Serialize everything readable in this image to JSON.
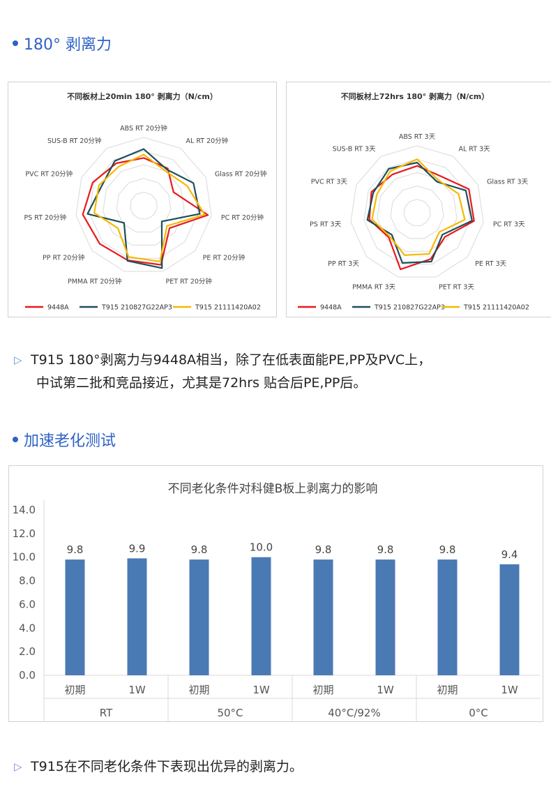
{
  "section1": {
    "title": "180° 剥离力"
  },
  "section2": {
    "title": "加速老化测试"
  },
  "notes": {
    "note1_line1": "T915 180°剥离力与9448A相当，除了在低表面能PE,PP及PVC上，",
    "note1_line2": "中试第二批和竞品接近，尤其是72hrs 贴合后PE,PP后。",
    "note2": "T915在不同老化条件下表现出优异的剥离力。"
  },
  "icons": {
    "bullet": "dot-bullet-icon",
    "arrow": "triangle-arrow-icon"
  },
  "colors": {
    "accent": "#2f62c6",
    "red": "#e8191c",
    "teal": "#1d4f5c",
    "gold": "#f5b800",
    "bar": "#4a7ab4"
  },
  "chart_data": [
    {
      "type": "radar",
      "title": "不同板材上20min 180°  剥离力（N/cm）",
      "categories": [
        "ABS RT 20分钟",
        "AL RT 20分钟",
        "Glass RT 20分钟",
        "PC RT 20分钟",
        "PE RT 20分钟",
        "PET RT 20分钟",
        "PMMA RT 20分钟",
        "PP RT 20分钟",
        "PS RT 20分钟",
        "PVC RT 20分钟",
        "SUS-B RT 20分钟"
      ],
      "rmax": 10,
      "series": [
        {
          "name": "9448A",
          "color": "#e8191c",
          "values": [
            7.0,
            6.5,
            4.8,
            9.5,
            5.0,
            9.0,
            8.3,
            8.5,
            9.0,
            8.2,
            7.4
          ]
        },
        {
          "name": "T915  210827G22AP3",
          "color": "#1d4f5c",
          "values": [
            8.3,
            6.3,
            8.0,
            8.3,
            3.5,
            9.5,
            8.4,
            3.8,
            8.3,
            6.8,
            7.8
          ]
        },
        {
          "name": "T915  21111420A02",
          "color": "#f5b800",
          "values": [
            7.5,
            6.0,
            7.0,
            9.0,
            4.5,
            8.5,
            7.8,
            5.0,
            7.3,
            7.2,
            6.8
          ]
        }
      ]
    },
    {
      "type": "radar",
      "title": "不同板材上72hrs 180°  剥离力（N/cm）",
      "categories": [
        "ABS RT 3天",
        "AL RT 3天",
        "Glass RT 3天",
        "PC RT 3天",
        "PE RT 3天",
        "PET RT 3天",
        "PMMA RT 3天",
        "PP RT 3天",
        "PS RT 3天",
        "PVC RT 3天",
        "SUS-B RT 3天"
      ],
      "rmax": 10,
      "series": [
        {
          "name": "9448A",
          "color": "#e8191c",
          "values": [
            7.0,
            6.5,
            8.5,
            8.6,
            5.5,
            7.2,
            8.8,
            5.6,
            7.2,
            7.5,
            6.8
          ]
        },
        {
          "name": "T915  210827G22AP3",
          "color": "#1d4f5c",
          "values": [
            7.5,
            5.5,
            8.0,
            8.3,
            5.0,
            7.6,
            7.8,
            5.0,
            7.5,
            7.2,
            7.8
          ]
        },
        {
          "name": "T915  21111420A02",
          "color": "#f5b800",
          "values": [
            8.0,
            5.8,
            6.8,
            7.2,
            4.4,
            6.4,
            6.6,
            5.4,
            6.8,
            6.6,
            7.4
          ]
        }
      ]
    },
    {
      "type": "bar",
      "title": "不同老化条件对科健B板上剥离力的影响",
      "categories": [
        "初期",
        "1W",
        "初期",
        "1W",
        "初期",
        "1W",
        "初期",
        "1W"
      ],
      "groups": [
        "RT",
        "50°C",
        "40°C/92%",
        "0°C"
      ],
      "values": [
        9.8,
        9.9,
        9.8,
        10.0,
        9.8,
        9.8,
        9.8,
        9.4
      ],
      "value_labels": [
        "9.8",
        "9.9",
        "9.8",
        "10.0",
        "9.8",
        "9.8",
        "9.8",
        "9.4"
      ],
      "yticks": [
        "0.0",
        "2.0",
        "4.0",
        "6.0",
        "8.0",
        "10.0",
        "12.0",
        "14.0"
      ],
      "ylim": [
        0,
        14
      ],
      "color": "#4a7ab4"
    }
  ]
}
